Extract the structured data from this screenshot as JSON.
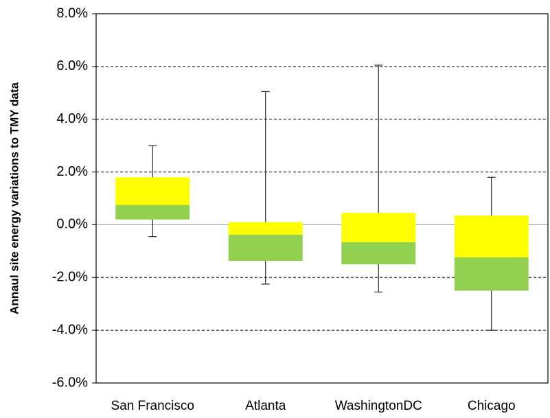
{
  "chart_data": {
    "type": "box",
    "y_label": "Annaul site energy variations to TMY data",
    "categories": [
      "San Francisco",
      "Atlanta",
      "WashingtonDC",
      "Chicago"
    ],
    "whisker_high": [
      3.0,
      5.05,
      6.05,
      1.8
    ],
    "q3": [
      1.8,
      0.1,
      0.45,
      0.35
    ],
    "median": [
      0.75,
      -0.38,
      -0.66,
      -1.24
    ],
    "q1": [
      0.2,
      -1.37,
      -1.5,
      -2.5
    ],
    "whisker_low": [
      -0.45,
      -2.25,
      -2.55,
      -4.0
    ],
    "upper_color": "#ffff00",
    "lower_color": "#92d050",
    "ylim": [
      -6,
      8
    ],
    "yticks": [
      {
        "value": -6,
        "label": "-6.0%"
      },
      {
        "value": -4,
        "label": "-4.0%"
      },
      {
        "value": -2,
        "label": "-2.0%"
      },
      {
        "value": 0,
        "label": "0.0%"
      },
      {
        "value": 2,
        "label": "2.0%"
      },
      {
        "value": 4,
        "label": "4.0%"
      },
      {
        "value": 6,
        "label": "6.0%"
      },
      {
        "value": 8,
        "label": "8.0%"
      }
    ],
    "grid": true
  }
}
